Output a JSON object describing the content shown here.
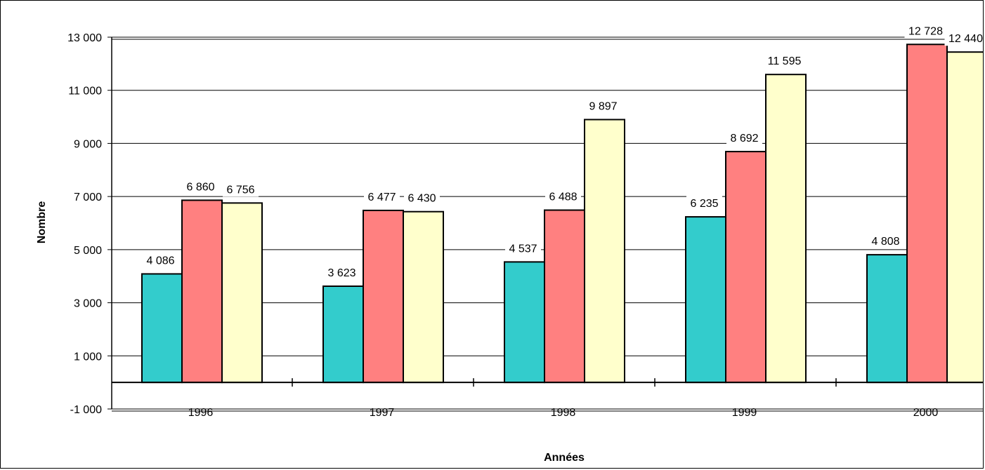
{
  "chart_data": {
    "type": "bar",
    "title": "",
    "xlabel": "Années",
    "ylabel": "Nombre",
    "categories": [
      "1996",
      "1997",
      "1998",
      "1999",
      "2000"
    ],
    "ylim": [
      -1000,
      13000
    ],
    "yticks": [
      -1000,
      1000,
      3000,
      5000,
      7000,
      9000,
      11000,
      13000
    ],
    "ytick_labels": [
      "-1 000",
      "1 000",
      "3 000",
      "5 000",
      "7 000",
      "9 000",
      "11 000",
      "13 000"
    ],
    "grid": true,
    "legend": "none",
    "series": [
      {
        "color": "#33CCCC",
        "values": [
          4086,
          3623,
          4537,
          6235,
          4808
        ],
        "labels": [
          "4 086",
          "3 623",
          "4 537",
          "6 235",
          "4 808"
        ]
      },
      {
        "color": "#FF8080",
        "values": [
          6860,
          6477,
          6488,
          8692,
          12728
        ],
        "labels": [
          "6 860",
          "6 477",
          "6 488",
          "8 692",
          "12 728"
        ]
      },
      {
        "color": "#FFFFCC",
        "values": [
          6756,
          6430,
          9897,
          11595,
          12440
        ],
        "labels": [
          "6 756",
          "6 430",
          "9 897",
          "11 595",
          "12 440"
        ]
      }
    ]
  }
}
